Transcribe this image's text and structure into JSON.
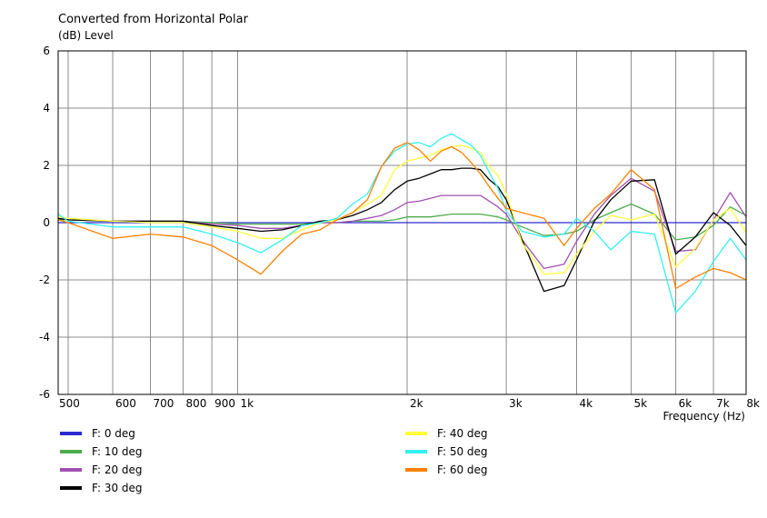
{
  "chart_data": {
    "type": "line",
    "title": "Converted from Horizontal Polar",
    "ylabel": "(dB)  Level",
    "xlabel": "Frequency  (Hz)",
    "xscale": "log",
    "xlim": [
      480,
      8000
    ],
    "ylim": [
      -6,
      6
    ],
    "grid": true,
    "legend_position": "bottom",
    "x_ticks": [
      {
        "value": 500,
        "label": "500"
      },
      {
        "value": 600,
        "label": "600"
      },
      {
        "value": 700,
        "label": "700"
      },
      {
        "value": 800,
        "label": "800"
      },
      {
        "value": 900,
        "label": "900"
      },
      {
        "value": 1000,
        "label": "1k"
      },
      {
        "value": 2000,
        "label": "2k"
      },
      {
        "value": 3000,
        "label": "3k"
      },
      {
        "value": 4000,
        "label": "4k"
      },
      {
        "value": 5000,
        "label": "5k"
      },
      {
        "value": 6000,
        "label": "6k"
      },
      {
        "value": 7000,
        "label": "7k"
      },
      {
        "value": 8000,
        "label": "8k"
      }
    ],
    "y_ticks": [
      -6,
      -4,
      -2,
      0,
      2,
      4,
      6
    ],
    "series": [
      {
        "name": "F: 0 deg",
        "color": "#2b2bd0",
        "x": [
          480,
          8000
        ],
        "y": [
          0.0,
          0.0
        ]
      },
      {
        "name": "F: 10 deg",
        "color": "#4cac4c",
        "x": [
          480,
          500,
          600,
          700,
          800,
          900,
          1000,
          1100,
          1200,
          1300,
          1400,
          1500,
          1600,
          1700,
          1800,
          1900,
          2000,
          2100,
          2200,
          2300,
          2400,
          2500,
          2600,
          2700,
          2800,
          2900,
          3000,
          3200,
          3500,
          3800,
          4000,
          4300,
          4600,
          5000,
          5500,
          6000,
          6500,
          7000,
          7500,
          8000
        ],
        "y": [
          0.1,
          0.1,
          0.05,
          0.05,
          0.05,
          0.0,
          -0.05,
          -0.05,
          -0.05,
          -0.05,
          0.0,
          0.0,
          0.05,
          0.05,
          0.05,
          0.1,
          0.2,
          0.2,
          0.2,
          0.25,
          0.3,
          0.3,
          0.3,
          0.3,
          0.25,
          0.2,
          0.1,
          -0.15,
          -0.45,
          -0.4,
          -0.3,
          0.1,
          0.35,
          0.65,
          0.3,
          -0.6,
          -0.5,
          -0.1,
          0.55,
          0.25
        ]
      },
      {
        "name": "F: 20 deg",
        "color": "#a050b0",
        "x": [
          480,
          500,
          600,
          700,
          800,
          900,
          1000,
          1100,
          1200,
          1300,
          1400,
          1500,
          1600,
          1700,
          1800,
          1900,
          2000,
          2100,
          2200,
          2300,
          2400,
          2500,
          2600,
          2700,
          2800,
          2900,
          3000,
          3200,
          3500,
          3800,
          4000,
          4300,
          4600,
          5000,
          5500,
          6000,
          6500,
          7000,
          7500,
          8000
        ],
        "y": [
          0.15,
          0.1,
          0.05,
          0.05,
          0.05,
          -0.05,
          -0.1,
          -0.2,
          -0.2,
          -0.1,
          0.0,
          0.0,
          0.05,
          0.15,
          0.25,
          0.45,
          0.7,
          0.75,
          0.85,
          0.95,
          0.95,
          0.95,
          0.95,
          0.95,
          0.75,
          0.55,
          0.3,
          -0.6,
          -1.6,
          -1.45,
          -0.65,
          0.3,
          0.95,
          1.55,
          1.1,
          -1.0,
          -0.95,
          0.1,
          1.05,
          0.2
        ]
      },
      {
        "name": "F: 30 deg",
        "color": "#000000",
        "x": [
          480,
          500,
          600,
          700,
          800,
          900,
          1000,
          1100,
          1200,
          1300,
          1400,
          1500,
          1600,
          1700,
          1800,
          1900,
          2000,
          2100,
          2200,
          2300,
          2400,
          2500,
          2600,
          2700,
          2800,
          2900,
          3000,
          3200,
          3500,
          3800,
          4000,
          4300,
          4600,
          5000,
          5500,
          6000,
          6500,
          7000,
          7500,
          8000
        ],
        "y": [
          0.15,
          0.1,
          0.05,
          0.05,
          0.05,
          -0.1,
          -0.2,
          -0.3,
          -0.25,
          -0.1,
          0.05,
          0.1,
          0.25,
          0.45,
          0.7,
          1.15,
          1.45,
          1.55,
          1.7,
          1.85,
          1.85,
          1.9,
          1.9,
          1.85,
          1.5,
          1.25,
          0.8,
          -0.6,
          -2.4,
          -2.2,
          -1.3,
          0.05,
          0.8,
          1.45,
          1.5,
          -1.1,
          -0.5,
          0.35,
          -0.1,
          -0.8
        ]
      },
      {
        "name": "F: 40 deg",
        "color": "#ffff3c",
        "x": [
          480,
          500,
          600,
          700,
          800,
          900,
          1000,
          1100,
          1200,
          1300,
          1400,
          1500,
          1600,
          1700,
          1800,
          1900,
          2000,
          2100,
          2200,
          2300,
          2400,
          2500,
          2600,
          2700,
          2800,
          2900,
          3000,
          3200,
          3500,
          3800,
          4000,
          4300,
          4600,
          5000,
          5500,
          6000,
          6500,
          7000,
          7500,
          8000
        ],
        "y": [
          0.2,
          0.15,
          0.05,
          0.0,
          0.0,
          -0.15,
          -0.3,
          -0.55,
          -0.55,
          -0.25,
          0.0,
          0.1,
          0.35,
          0.65,
          0.95,
          1.85,
          2.15,
          2.25,
          2.35,
          2.55,
          2.65,
          2.7,
          2.6,
          2.45,
          1.95,
          1.65,
          1.0,
          -0.7,
          -1.8,
          -1.75,
          -1.1,
          -0.3,
          0.25,
          0.1,
          0.3,
          -1.55,
          -0.9,
          0.1,
          0.5,
          -0.35
        ]
      },
      {
        "name": "F: 50 deg",
        "color": "#33f0f0",
        "x": [
          480,
          500,
          600,
          700,
          800,
          900,
          1000,
          1100,
          1200,
          1300,
          1400,
          1500,
          1600,
          1700,
          1800,
          1900,
          2000,
          2100,
          2200,
          2300,
          2400,
          2500,
          2600,
          2700,
          2800,
          2900,
          3000,
          3200,
          3500,
          3800,
          4000,
          4300,
          4600,
          5000,
          5500,
          6000,
          6500,
          7000,
          7500,
          8000
        ],
        "y": [
          0.3,
          0.05,
          -0.15,
          -0.15,
          -0.15,
          -0.4,
          -0.7,
          -1.05,
          -0.6,
          -0.1,
          0.0,
          0.15,
          0.65,
          1.0,
          1.95,
          2.5,
          2.75,
          2.8,
          2.65,
          2.95,
          3.1,
          2.9,
          2.7,
          2.35,
          1.75,
          1.2,
          0.4,
          -0.3,
          -0.5,
          -0.4,
          0.15,
          -0.3,
          -0.95,
          -0.3,
          -0.4,
          -3.15,
          -2.4,
          -1.35,
          -0.55,
          -1.3
        ]
      },
      {
        "name": "F: 60 deg",
        "color": "#ff8000",
        "x": [
          480,
          500,
          600,
          700,
          800,
          900,
          1000,
          1100,
          1200,
          1300,
          1400,
          1500,
          1600,
          1700,
          1800,
          1900,
          2000,
          2100,
          2200,
          2300,
          2400,
          2500,
          2600,
          2700,
          2800,
          2900,
          3000,
          3200,
          3500,
          3800,
          4000,
          4300,
          4600,
          5000,
          5500,
          6000,
          6500,
          7000,
          7500,
          8000
        ],
        "y": [
          0.1,
          0.0,
          -0.55,
          -0.4,
          -0.5,
          -0.8,
          -1.3,
          -1.8,
          -1.0,
          -0.4,
          -0.25,
          0.1,
          0.35,
          0.8,
          1.95,
          2.6,
          2.8,
          2.55,
          2.15,
          2.5,
          2.65,
          2.45,
          2.1,
          1.7,
          1.25,
          0.85,
          0.5,
          0.35,
          0.15,
          -0.8,
          -0.2,
          0.5,
          1.0,
          1.85,
          1.15,
          -2.3,
          -1.9,
          -1.6,
          -1.75,
          -2.0
        ]
      }
    ]
  }
}
